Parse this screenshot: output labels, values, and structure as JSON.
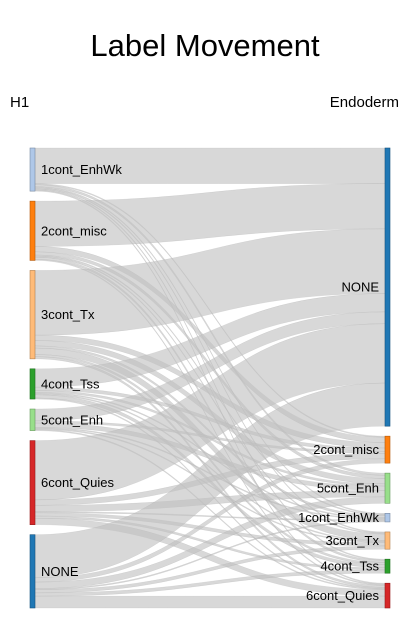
{
  "chart_data": {
    "type": "sankey",
    "title": "Label Movement",
    "left_axis_label": "H1",
    "right_axis_label": "Endoderm",
    "left_nodes": [
      {
        "id": "L_1cont_EnhWk",
        "name": "1cont_EnhWk",
        "value": 40,
        "color": "#aec7e8"
      },
      {
        "id": "L_2cont_misc",
        "name": "2cont_misc",
        "value": 55,
        "color": "#ff7f0e"
      },
      {
        "id": "L_3cont_Tx",
        "name": "3cont_Tx",
        "value": 82,
        "color": "#ffbb78"
      },
      {
        "id": "L_4cont_Tss",
        "name": "4cont_Tss",
        "value": 28,
        "color": "#2ca02c"
      },
      {
        "id": "L_5cont_Enh",
        "name": "5cont_Enh",
        "value": 20,
        "color": "#98df8a"
      },
      {
        "id": "L_6cont_Quies",
        "name": "6cont_Quies",
        "value": 78,
        "color": "#d62728"
      },
      {
        "id": "L_NONE",
        "name": "NONE",
        "value": 68,
        "color": "#1f77b4"
      }
    ],
    "right_nodes": [
      {
        "id": "R_NONE",
        "name": "NONE",
        "value": 258,
        "color": "#1f77b4"
      },
      {
        "id": "R_2cont_misc",
        "name": "2cont_misc",
        "value": 25,
        "color": "#ff7f0e"
      },
      {
        "id": "R_5cont_Enh",
        "name": "5cont_Enh",
        "value": 28,
        "color": "#98df8a"
      },
      {
        "id": "R_1cont_EnhWk",
        "name": "1cont_EnhWk",
        "value": 8,
        "color": "#aec7e8"
      },
      {
        "id": "R_3cont_Tx",
        "name": "3cont_Tx",
        "value": 16,
        "color": "#ffbb78"
      },
      {
        "id": "R_4cont_Tss",
        "name": "4cont_Tss",
        "value": 13,
        "color": "#2ca02c"
      },
      {
        "id": "R_6cont_Quies",
        "name": "6cont_Quies",
        "value": 23,
        "color": "#d62728"
      }
    ],
    "links": [
      {
        "source": "L_1cont_EnhWk",
        "target": "R_NONE",
        "value": 33
      },
      {
        "source": "L_1cont_EnhWk",
        "target": "R_2cont_misc",
        "value": 1
      },
      {
        "source": "L_1cont_EnhWk",
        "target": "R_5cont_Enh",
        "value": 2
      },
      {
        "source": "L_1cont_EnhWk",
        "target": "R_1cont_EnhWk",
        "value": 1
      },
      {
        "source": "L_1cont_EnhWk",
        "target": "R_3cont_Tx",
        "value": 1
      },
      {
        "source": "L_1cont_EnhWk",
        "target": "R_4cont_Tss",
        "value": 1
      },
      {
        "source": "L_1cont_EnhWk",
        "target": "R_6cont_Quies",
        "value": 1
      },
      {
        "source": "L_2cont_misc",
        "target": "R_NONE",
        "value": 42
      },
      {
        "source": "L_2cont_misc",
        "target": "R_2cont_misc",
        "value": 5
      },
      {
        "source": "L_2cont_misc",
        "target": "R_5cont_Enh",
        "value": 3
      },
      {
        "source": "L_2cont_misc",
        "target": "R_1cont_EnhWk",
        "value": 1
      },
      {
        "source": "L_2cont_misc",
        "target": "R_3cont_Tx",
        "value": 1
      },
      {
        "source": "L_2cont_misc",
        "target": "R_4cont_Tss",
        "value": 2
      },
      {
        "source": "L_2cont_misc",
        "target": "R_6cont_Quies",
        "value": 1
      },
      {
        "source": "L_3cont_Tx",
        "target": "R_NONE",
        "value": 60
      },
      {
        "source": "L_3cont_Tx",
        "target": "R_2cont_misc",
        "value": 5
      },
      {
        "source": "L_3cont_Tx",
        "target": "R_5cont_Enh",
        "value": 5
      },
      {
        "source": "L_3cont_Tx",
        "target": "R_1cont_EnhWk",
        "value": 2
      },
      {
        "source": "L_3cont_Tx",
        "target": "R_3cont_Tx",
        "value": 6
      },
      {
        "source": "L_3cont_Tx",
        "target": "R_4cont_Tss",
        "value": 2
      },
      {
        "source": "L_3cont_Tx",
        "target": "R_6cont_Quies",
        "value": 2
      },
      {
        "source": "L_4cont_Tss",
        "target": "R_NONE",
        "value": 17
      },
      {
        "source": "L_4cont_Tss",
        "target": "R_2cont_misc",
        "value": 3
      },
      {
        "source": "L_4cont_Tss",
        "target": "R_5cont_Enh",
        "value": 2
      },
      {
        "source": "L_4cont_Tss",
        "target": "R_1cont_EnhWk",
        "value": 1
      },
      {
        "source": "L_4cont_Tss",
        "target": "R_3cont_Tx",
        "value": 1
      },
      {
        "source": "L_4cont_Tss",
        "target": "R_4cont_Tss",
        "value": 3
      },
      {
        "source": "L_4cont_Tss",
        "target": "R_6cont_Quies",
        "value": 1
      },
      {
        "source": "L_5cont_Enh",
        "target": "R_NONE",
        "value": 11
      },
      {
        "source": "L_5cont_Enh",
        "target": "R_2cont_misc",
        "value": 2
      },
      {
        "source": "L_5cont_Enh",
        "target": "R_5cont_Enh",
        "value": 4
      },
      {
        "source": "L_5cont_Enh",
        "target": "R_1cont_EnhWk",
        "value": 1
      },
      {
        "source": "L_5cont_Enh",
        "target": "R_3cont_Tx",
        "value": 1
      },
      {
        "source": "L_5cont_Enh",
        "target": "R_6cont_Quies",
        "value": 1
      },
      {
        "source": "L_6cont_Quies",
        "target": "R_NONE",
        "value": 55
      },
      {
        "source": "L_6cont_Quies",
        "target": "R_2cont_misc",
        "value": 5
      },
      {
        "source": "L_6cont_Quies",
        "target": "R_5cont_Enh",
        "value": 6
      },
      {
        "source": "L_6cont_Quies",
        "target": "R_1cont_EnhWk",
        "value": 1
      },
      {
        "source": "L_6cont_Quies",
        "target": "R_3cont_Tx",
        "value": 3
      },
      {
        "source": "L_6cont_Quies",
        "target": "R_4cont_Tss",
        "value": 2
      },
      {
        "source": "L_6cont_Quies",
        "target": "R_6cont_Quies",
        "value": 6
      },
      {
        "source": "L_NONE",
        "target": "R_NONE",
        "value": 40
      },
      {
        "source": "L_NONE",
        "target": "R_2cont_misc",
        "value": 4
      },
      {
        "source": "L_NONE",
        "target": "R_5cont_Enh",
        "value": 6
      },
      {
        "source": "L_NONE",
        "target": "R_1cont_EnhWk",
        "value": 1
      },
      {
        "source": "L_NONE",
        "target": "R_3cont_Tx",
        "value": 3
      },
      {
        "source": "L_NONE",
        "target": "R_4cont_Tss",
        "value": 3
      },
      {
        "source": "L_NONE",
        "target": "R_6cont_Quies",
        "value": 11
      }
    ],
    "link_color": "#c0c0c0"
  }
}
